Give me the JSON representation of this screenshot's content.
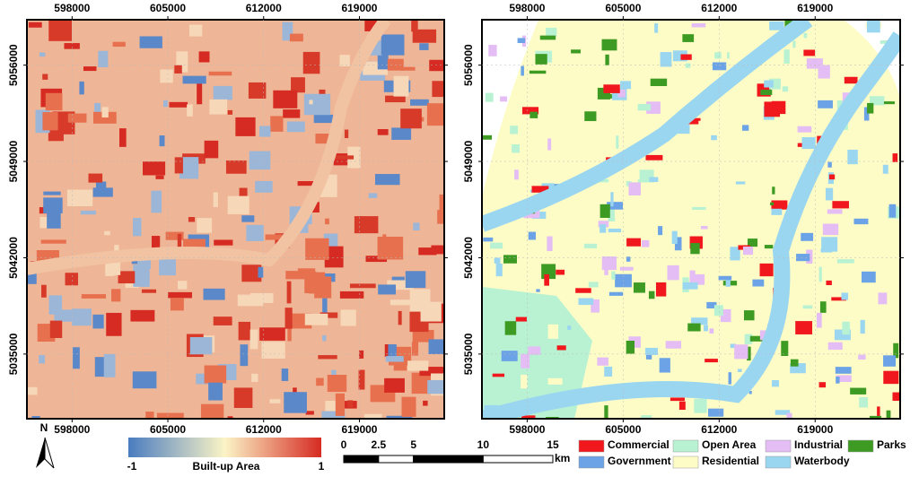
{
  "maps": {
    "x_ticks": [
      598000,
      605000,
      612000,
      619000
    ],
    "y_ticks": [
      5056000,
      5049000,
      5042000,
      5035000
    ],
    "xlim": [
      594700,
      625200
    ],
    "ylim": [
      5030300,
      5059300
    ]
  },
  "colorbar": {
    "min": -1,
    "max": 1,
    "label": "Built-up Area",
    "colors": [
      "#4a7cc0",
      "#fbf4c6",
      "#d62b22"
    ]
  },
  "scalebar": {
    "ticks": [
      0,
      2.5,
      5,
      10,
      15
    ],
    "unit": "km"
  },
  "north": "N",
  "legend": [
    {
      "name": "Commercial",
      "color": "#f0181c"
    },
    {
      "name": "Open Area",
      "color": "#b8f2d2"
    },
    {
      "name": "Industrial",
      "color": "#e4bdf4"
    },
    {
      "name": "Parks",
      "color": "#3d9a22"
    },
    {
      "name": "Government",
      "color": "#6ba3e6"
    },
    {
      "name": "Residential",
      "color": "#fdfcc6"
    },
    {
      "name": "Waterbody",
      "color": "#9bd6f0"
    }
  ]
}
